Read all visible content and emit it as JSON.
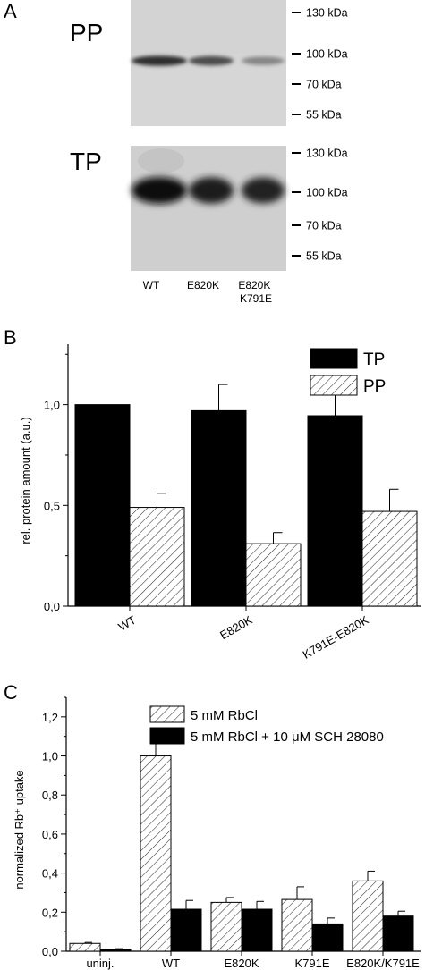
{
  "panel_a": {
    "letter": "A",
    "blots": [
      {
        "label": "PP",
        "band_intensity": [
          0.85,
          0.72,
          0.45
        ]
      },
      {
        "label": "TP",
        "band_intensity": [
          1.0,
          0.95,
          0.92
        ]
      }
    ],
    "markers": [
      "130 kDa",
      "100 kDa",
      "70 kDa",
      "55 kDa"
    ],
    "lanes": [
      "WT",
      "E820K",
      "E820K\nK791E"
    ]
  },
  "panel_b_letter": "B",
  "panel_c_letter": "C",
  "chart_data": [
    {
      "type": "bar",
      "categories": [
        "WT",
        "E820K",
        "K791E-E820K"
      ],
      "series": [
        {
          "name": "TP",
          "values": [
            1.0,
            0.97,
            0.945
          ],
          "errors": [
            0.0,
            0.13,
            0.105
          ],
          "color": "#000000",
          "pattern": "solid"
        },
        {
          "name": "PP",
          "values": [
            0.49,
            0.31,
            0.47
          ],
          "errors": [
            0.07,
            0.055,
            0.11
          ],
          "color": "#ffffff",
          "pattern": "hatch"
        }
      ],
      "ylabel": "rel. protein amount (a.u.)",
      "xlabel": "",
      "ylim": [
        0,
        1.3
      ],
      "yticks": [
        "0,0",
        "0,5",
        "1,0"
      ],
      "ytick_values": [
        0.0,
        0.5,
        1.0
      ],
      "legend_position": "top-right",
      "grid": false
    },
    {
      "type": "bar",
      "categories": [
        "uninj.",
        "WT",
        "E820K",
        "K791E",
        "E820K/K791E"
      ],
      "series": [
        {
          "name": "5 mM RbCl",
          "values": [
            0.04,
            1.0,
            0.25,
            0.265,
            0.36
          ],
          "errors": [
            0.005,
            0.07,
            0.025,
            0.065,
            0.05
          ],
          "color": "#ffffff",
          "pattern": "hatch"
        },
        {
          "name": "5 mM RbCl + 10 μM SCH 28080",
          "values": [
            0.01,
            0.215,
            0.215,
            0.14,
            0.18
          ],
          "errors": [
            0.003,
            0.045,
            0.04,
            0.03,
            0.025
          ],
          "color": "#000000",
          "pattern": "solid"
        }
      ],
      "ylabel": "normalized Rb⁺ uptake",
      "xlabel": "",
      "ylim": [
        0,
        1.3
      ],
      "yticks": [
        "0,0",
        "0,2",
        "0,4",
        "0,6",
        "0,8",
        "1,0",
        "1,2"
      ],
      "ytick_values": [
        0.0,
        0.2,
        0.4,
        0.6,
        0.8,
        1.0,
        1.2
      ],
      "legend_position": "top",
      "grid": false
    }
  ]
}
